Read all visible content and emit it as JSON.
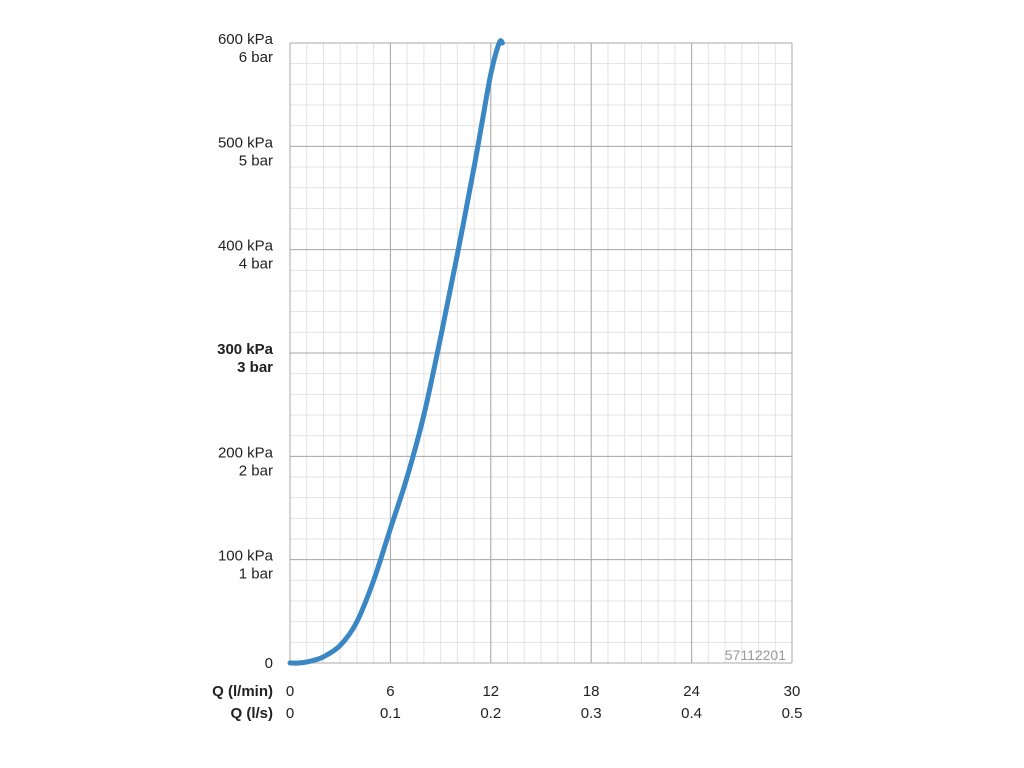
{
  "chart_data": {
    "type": "line",
    "x_axis": {
      "primary_label": "Q (l/min)",
      "secondary_label": "Q (l/s)",
      "ticks_primary": [
        "0",
        "6",
        "12",
        "18",
        "24",
        "30"
      ],
      "ticks_secondary": [
        "0",
        "0.1",
        "0.2",
        "0.3",
        "0.4",
        "0.5"
      ],
      "range": [
        0,
        30
      ]
    },
    "y_axis": {
      "range_kpa": [
        0,
        600
      ],
      "ticks": [
        {
          "value": 0,
          "kpa": "0",
          "bar": "",
          "bold": false
        },
        {
          "value": 100,
          "kpa": "100 kPa",
          "bar": "1 bar",
          "bold": false
        },
        {
          "value": 200,
          "kpa": "200 kPa",
          "bar": "2 bar",
          "bold": false
        },
        {
          "value": 300,
          "kpa": "300 kPa",
          "bar": "3 bar",
          "bold": true
        },
        {
          "value": 400,
          "kpa": "400 kPa",
          "bar": "4 bar",
          "bold": false
        },
        {
          "value": 500,
          "kpa": "500 kPa",
          "bar": "5 bar",
          "bold": false
        },
        {
          "value": 600,
          "kpa": "600 kPa",
          "bar": "6 bar",
          "bold": false
        }
      ]
    },
    "grid": true,
    "series": [
      {
        "color": "#3a87c4",
        "x": [
          0,
          0.5,
          1,
          1.5,
          2,
          3,
          4,
          5,
          6,
          7,
          8,
          9,
          10,
          11,
          11.5,
          12,
          12.5,
          12.7
        ],
        "y": [
          0,
          0,
          1,
          3,
          6,
          17,
          40,
          80,
          130,
          180,
          240,
          315,
          395,
          480,
          525,
          570,
          600,
          600
        ]
      }
    ],
    "annotation": "57112201"
  }
}
